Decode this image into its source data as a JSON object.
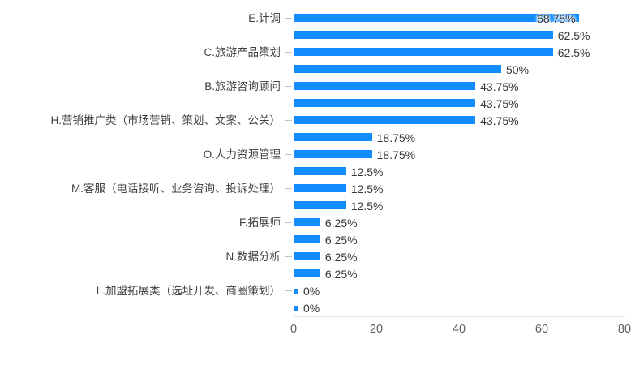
{
  "chart_data": {
    "type": "bar",
    "orientation": "horizontal",
    "title": "",
    "categories": [
      "E.计调",
      "",
      "C.旅游产品策划",
      "",
      "B.旅游咨询顾问",
      "",
      "H.营销推广类（市场营销、策划、文案、公关）",
      "",
      "O.人力资源管理",
      "",
      "M.客服（电话接听、业务咨询、投诉处理）",
      "",
      "F.拓展师",
      "",
      "N.数据分析",
      "",
      "L.加盟拓展类（选址开发、商圈策划）",
      ""
    ],
    "values": [
      68.75,
      62.5,
      62.5,
      50,
      43.75,
      43.75,
      43.75,
      18.75,
      18.75,
      12.5,
      12.5,
      12.5,
      6.25,
      6.25,
      6.25,
      6.25,
      0,
      0
    ],
    "data_labels": [
      "68.75%",
      "62.5%",
      "62.5%",
      "50%",
      "43.75%",
      "43.75%",
      "43.75%",
      "18.75%",
      "18.75%",
      "12.5%",
      "12.5%",
      "12.5%",
      "6.25%",
      "6.25%",
      "6.25%",
      "6.25%",
      "0%",
      "0%"
    ],
    "inside_label_indices": [
      0
    ],
    "x_ticks": [
      "0",
      "20",
      "40",
      "60",
      "80"
    ],
    "xlim": [
      0,
      80
    ],
    "grid": false,
    "legend": "none",
    "bar_color": "#118DFF",
    "axis_line_color": "#dde4eb",
    "label_color": "#3f3f3f",
    "value_label_color": "#373737",
    "tick_label_color": "#5f5f5f"
  }
}
